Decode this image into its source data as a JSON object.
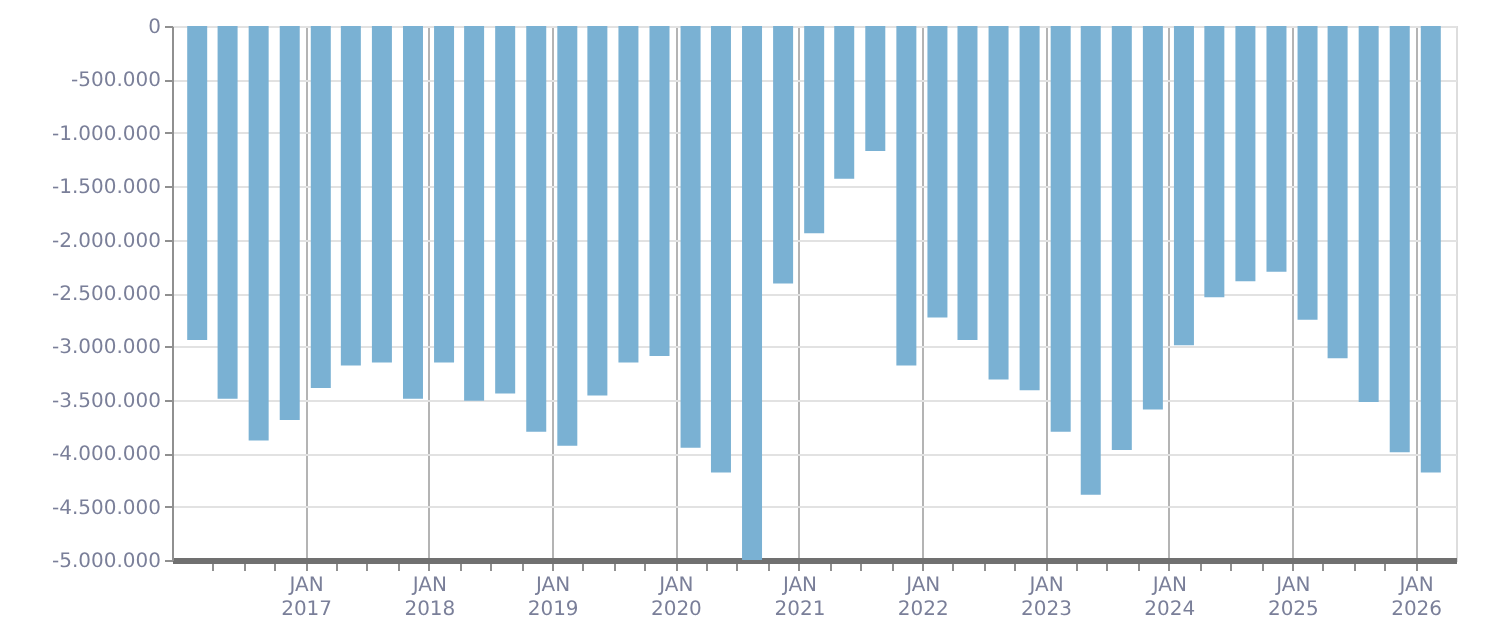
{
  "chart_data": {
    "type": "bar",
    "x": [
      "2016-02-15",
      "2016-05-15",
      "2016-08-15",
      "2016-11-15",
      "2017-02-15",
      "2017-05-15",
      "2017-08-15",
      "2017-11-15",
      "2018-02-15",
      "2018-05-15",
      "2018-08-15",
      "2018-11-15",
      "2019-02-15",
      "2019-05-15",
      "2019-08-15",
      "2019-11-15",
      "2020-02-15",
      "2020-05-15",
      "2020-08-15",
      "2020-11-15",
      "2021-02-15",
      "2021-05-15",
      "2021-08-15",
      "2021-11-15",
      "2022-02-15",
      "2022-05-15",
      "2022-08-15",
      "2022-11-15",
      "2023-02-15",
      "2023-05-15",
      "2023-08-15",
      "2023-11-15",
      "2024-02-15",
      "2024-05-15",
      "2024-08-15",
      "2024-11-15",
      "2025-02-15",
      "2025-05-15",
      "2025-08-15",
      "2025-11-15",
      "2026-02-15"
    ],
    "series": [
      {
        "color": "#7ab1d3",
        "values": [
          -2940000,
          -3490000,
          -3880000,
          -3690000,
          -3390000,
          -3180000,
          -3150000,
          -3490000,
          -3150000,
          -3510000,
          -3440000,
          -3800000,
          -3930000,
          -3460000,
          -3150000,
          -3090000,
          -3950000,
          -4180000,
          -5000000,
          -2410000,
          -1940000,
          -1430000,
          -1170000,
          -3180000,
          -2730000,
          -2940000,
          -3310000,
          -3410000,
          -3800000,
          -4390000,
          -3970000,
          -3590000,
          -2990000,
          -2540000,
          -2390000,
          -2300000,
          -2750000,
          -3110000,
          -3520000,
          -3990000,
          -4180000
        ]
      }
    ],
    "xlim": [
      "2016-01-01",
      "2026-04-01"
    ],
    "xticks": [
      {
        "value": "2016-04-01",
        "label": null
      },
      {
        "value": "2016-07-01",
        "label": null
      },
      {
        "value": "2016-10-01",
        "label": null
      },
      {
        "value": "2017-01-01",
        "label": "JAN 2017"
      },
      {
        "value": "2017-04-01",
        "label": null
      },
      {
        "value": "2017-07-01",
        "label": null
      },
      {
        "value": "2017-10-01",
        "label": null
      },
      {
        "value": "2018-01-01",
        "label": "JAN 2018"
      },
      {
        "value": "2018-04-01",
        "label": null
      },
      {
        "value": "2018-07-01",
        "label": null
      },
      {
        "value": "2018-10-01",
        "label": null
      },
      {
        "value": "2019-01-01",
        "label": "JAN 2019"
      },
      {
        "value": "2019-04-01",
        "label": null
      },
      {
        "value": "2019-07-01",
        "label": null
      },
      {
        "value": "2019-10-01",
        "label": null
      },
      {
        "value": "2020-01-01",
        "label": "JAN 2020"
      },
      {
        "value": "2020-04-01",
        "label": null
      },
      {
        "value": "2020-07-01",
        "label": null
      },
      {
        "value": "2020-10-01",
        "label": null
      },
      {
        "value": "2021-01-01",
        "label": "JAN 2021"
      },
      {
        "value": "2021-04-01",
        "label": null
      },
      {
        "value": "2021-07-01",
        "label": null
      },
      {
        "value": "2021-10-01",
        "label": null
      },
      {
        "value": "2022-01-01",
        "label": "JAN 2022"
      },
      {
        "value": "2022-04-01",
        "label": null
      },
      {
        "value": "2022-07-01",
        "label": null
      },
      {
        "value": "2022-10-01",
        "label": null
      },
      {
        "value": "2023-01-01",
        "label": "JAN 2023"
      },
      {
        "value": "2023-04-01",
        "label": null
      },
      {
        "value": "2023-07-01",
        "label": null
      },
      {
        "value": "2023-10-01",
        "label": null
      },
      {
        "value": "2024-01-01",
        "label": "JAN 2024"
      },
      {
        "value": "2024-04-01",
        "label": null
      },
      {
        "value": "2024-07-01",
        "label": null
      },
      {
        "value": "2024-10-01",
        "label": null
      },
      {
        "value": "2025-01-01",
        "label": "JAN 2025"
      },
      {
        "value": "2025-04-01",
        "label": null
      },
      {
        "value": "2025-07-01",
        "label": null
      },
      {
        "value": "2025-10-01",
        "label": null
      },
      {
        "value": "2026-01-01",
        "label": "JAN 2026"
      }
    ],
    "ylim": [
      -5000000,
      0
    ],
    "yticks": [
      {
        "value": -5000000,
        "label": "-5.000.000"
      },
      {
        "value": -4500000,
        "label": "-4.500.000"
      },
      {
        "value": -4000000,
        "label": "-4.000.000"
      },
      {
        "value": -3500000,
        "label": "-3.500.000"
      },
      {
        "value": -3000000,
        "label": "-3.000.000"
      },
      {
        "value": -2500000,
        "label": "-2.500.000"
      },
      {
        "value": -2000000,
        "label": "-2.000.000"
      },
      {
        "value": -1500000,
        "label": "-1.500.000"
      },
      {
        "value": -1000000,
        "label": "-1.000.000"
      },
      {
        "value": -500000,
        "label": "-500.000"
      },
      0
    ],
    "grid": true
  }
}
